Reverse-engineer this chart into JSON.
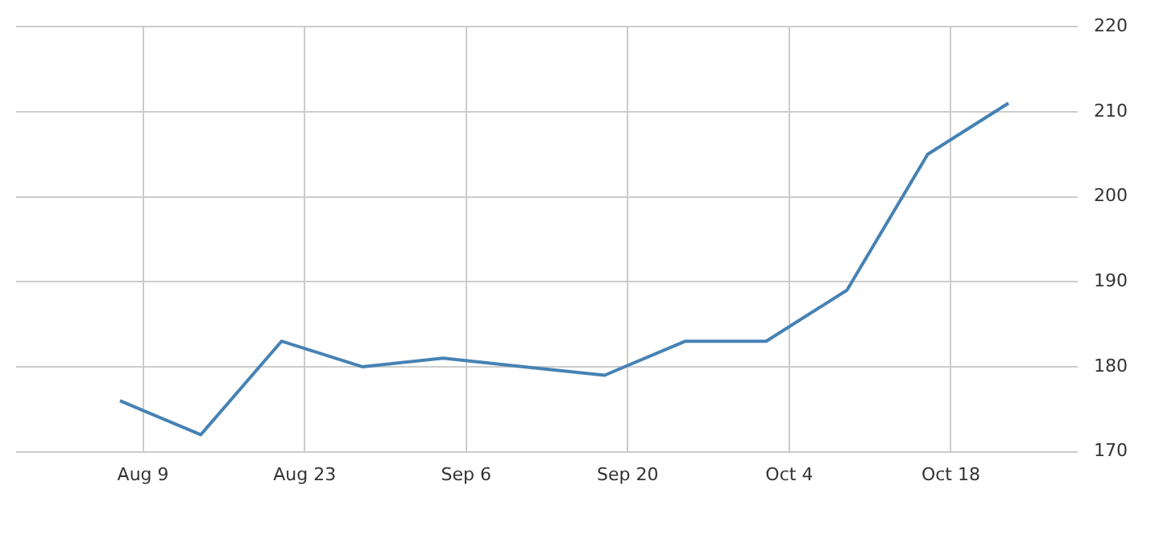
{
  "chart_data": {
    "type": "line",
    "x": [
      "--08-07",
      "--08-14",
      "--08-21",
      "--08-28",
      "--09-04",
      "--09-11",
      "--09-18",
      "--09-25",
      "--10-02",
      "--10-09",
      "--10-16",
      "--10-23"
    ],
    "series": [
      {
        "color": "#4682b4",
        "values": [
          176,
          172,
          183,
          180,
          181,
          180,
          179,
          183,
          183,
          189,
          205,
          211
        ]
      }
    ],
    "xlim": [
      "--07-29",
      "--10-29"
    ],
    "xticks": [
      {
        "value": "--08-09",
        "label": "Aug 9"
      },
      {
        "value": "--08-23",
        "label": "Aug 23"
      },
      {
        "value": "--09-06",
        "label": "Sep 6"
      },
      {
        "value": "--09-20",
        "label": "Sep 20"
      },
      {
        "value": "--10-04",
        "label": "Oct 4"
      },
      {
        "value": "--10-18",
        "label": "Oct 18"
      }
    ],
    "ylim": [
      170,
      220
    ],
    "yticks": [
      170,
      180,
      190,
      200,
      210,
      220
    ],
    "grid": true,
    "legend": false,
    "marker": "none",
    "line_style": "solid"
  }
}
